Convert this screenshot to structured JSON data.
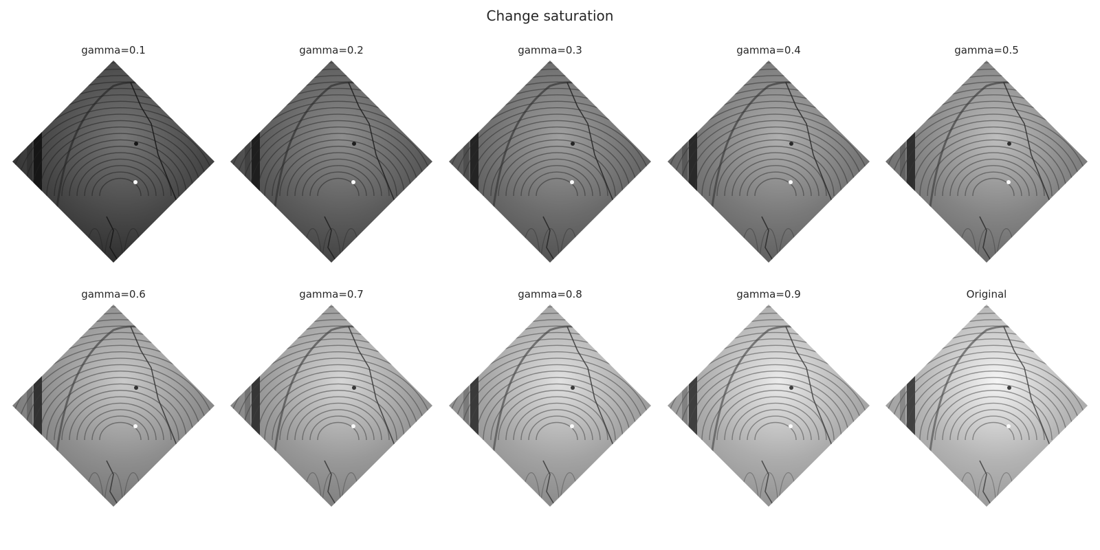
{
  "figure": {
    "title": "Change saturation",
    "panels": [
      {
        "label": "gamma=0.1",
        "gamma": 0.1
      },
      {
        "label": "gamma=0.2",
        "gamma": 0.2
      },
      {
        "label": "gamma=0.3",
        "gamma": 0.3
      },
      {
        "label": "gamma=0.4",
        "gamma": 0.4
      },
      {
        "label": "gamma=0.5",
        "gamma": 0.5
      },
      {
        "label": "gamma=0.6",
        "gamma": 0.6
      },
      {
        "label": "gamma=0.7",
        "gamma": 0.7
      },
      {
        "label": "gamma=0.8",
        "gamma": 0.8
      },
      {
        "label": "gamma=0.9",
        "gamma": 0.9
      },
      {
        "label": "Original",
        "gamma": 1.0
      }
    ]
  }
}
